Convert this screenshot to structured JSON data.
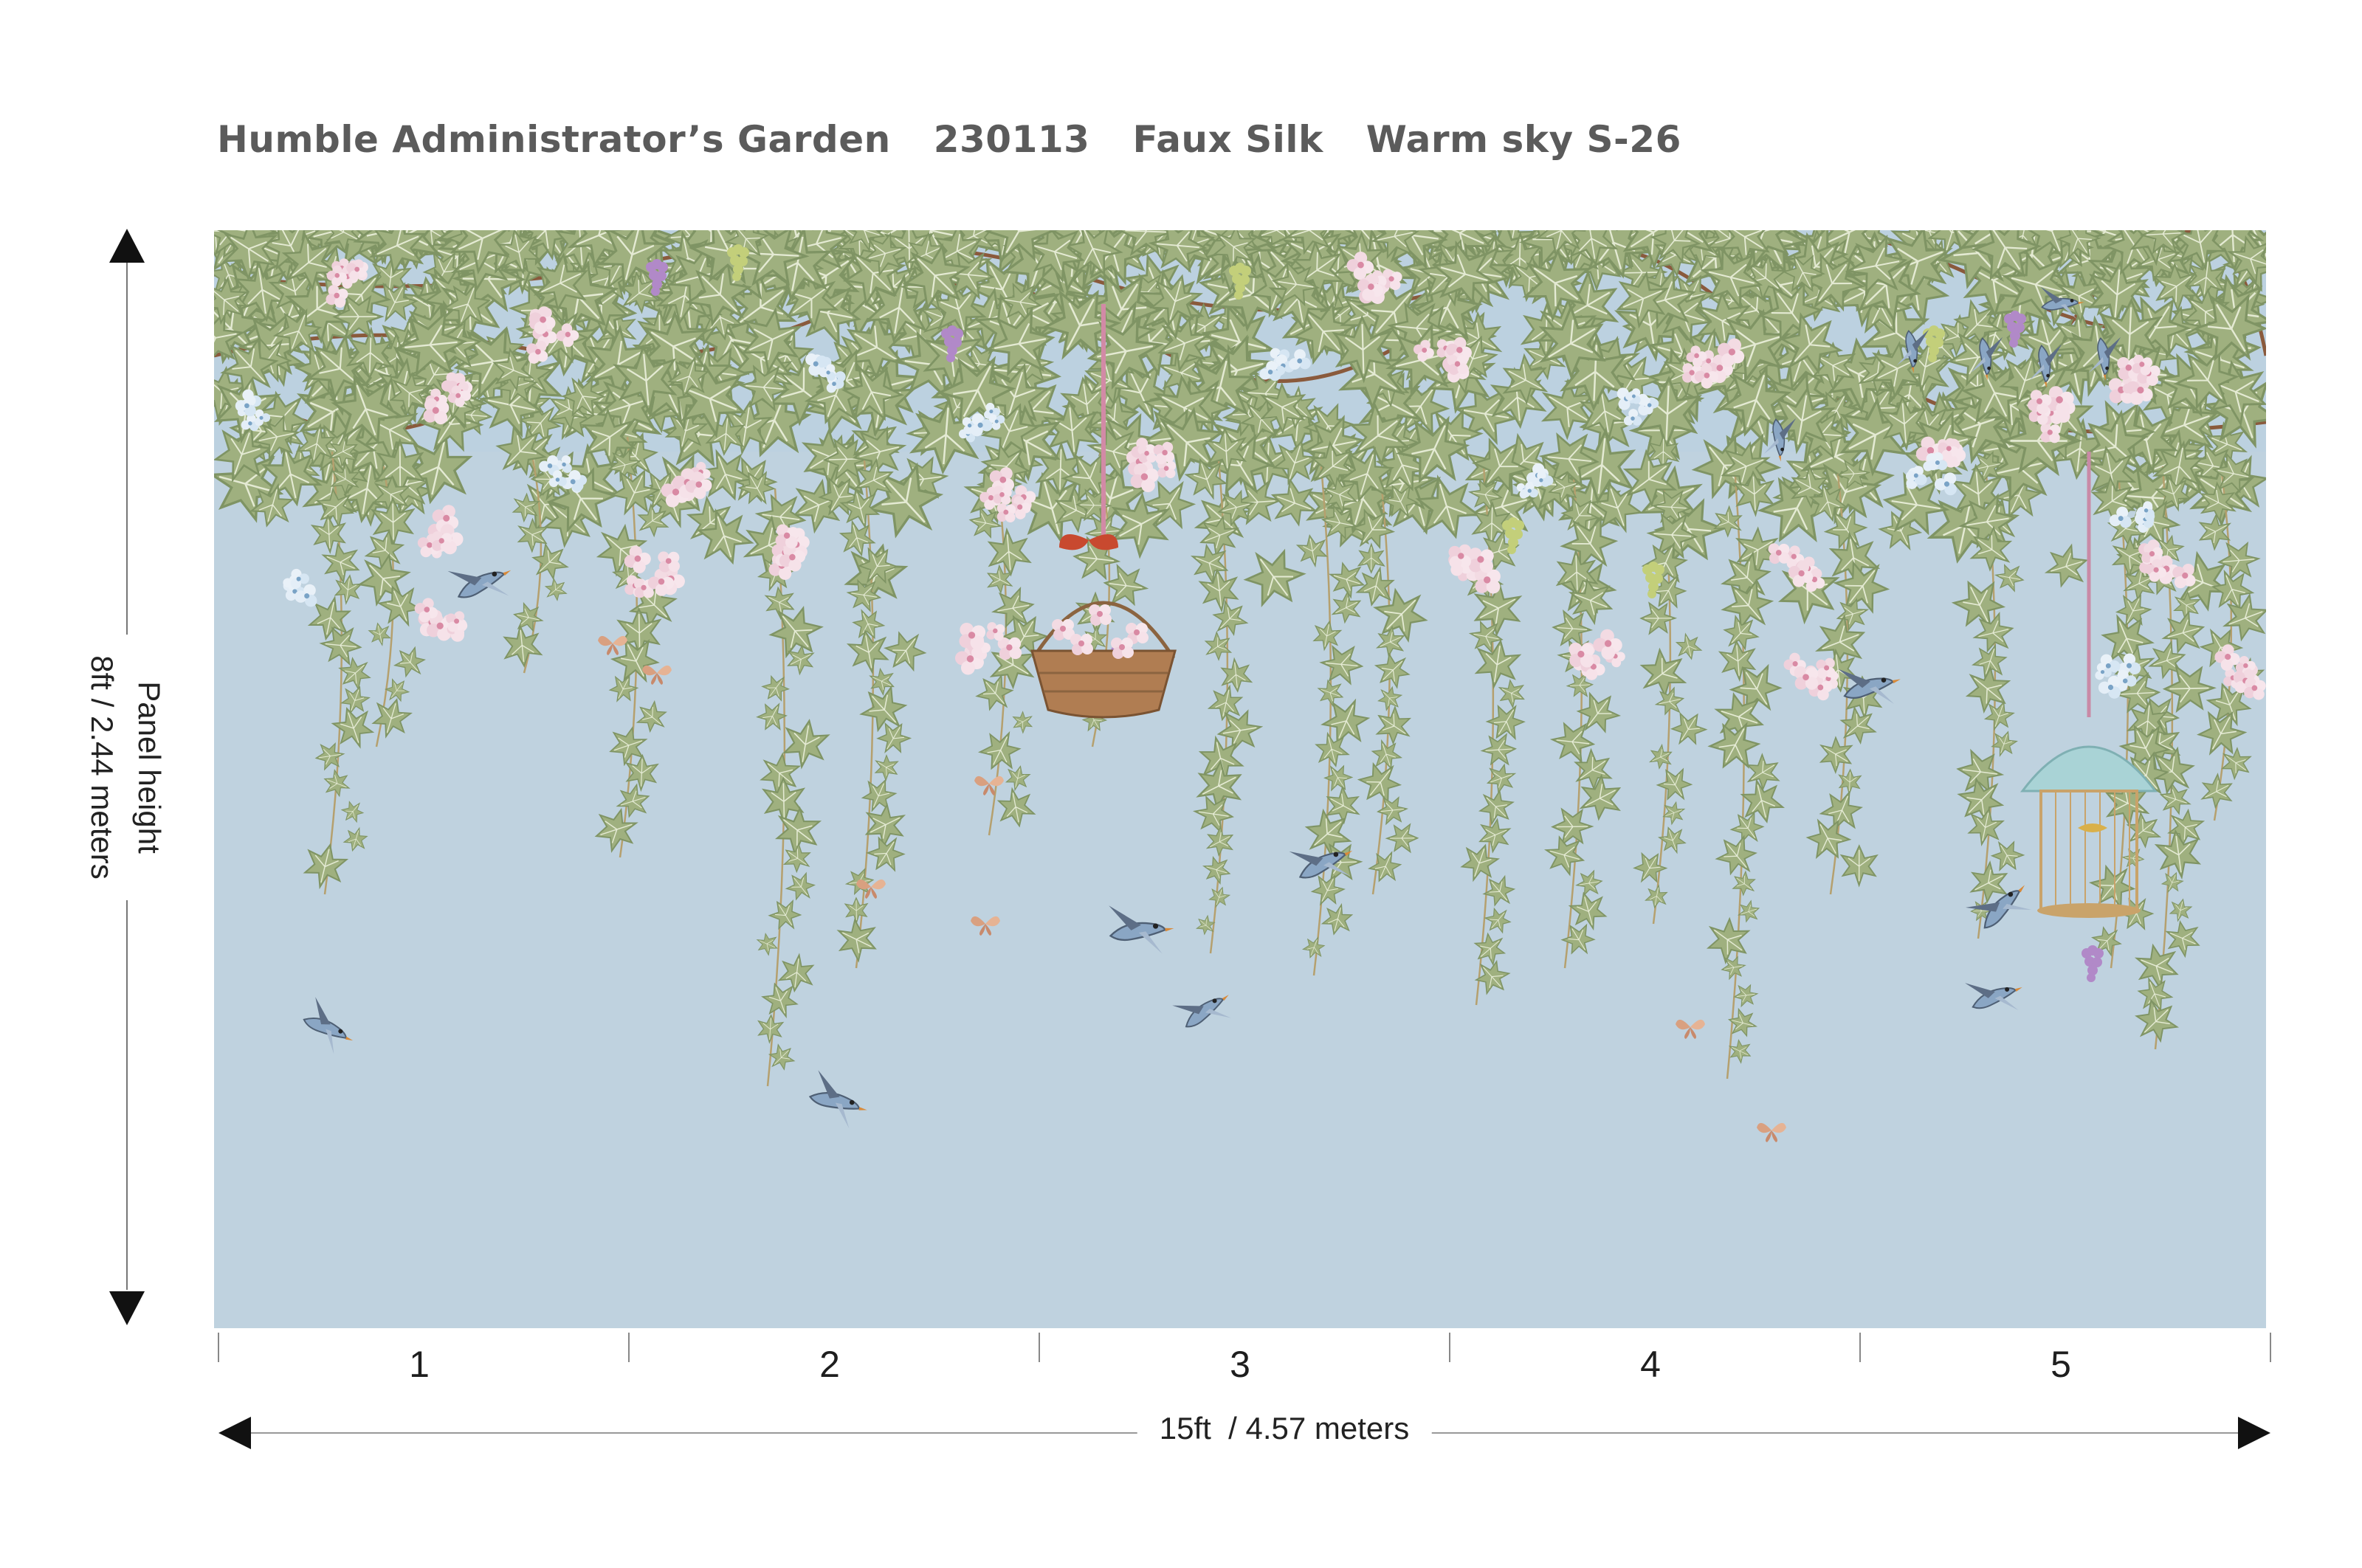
{
  "title": {
    "pattern_name": "Humble Administrator’s Garden",
    "code": "230113",
    "material": "Faux Silk",
    "colorway": "Warm sky S-26"
  },
  "dimensions": {
    "height_label_line1": "Panel height",
    "height_label_line2": "8ft / 2.44 meters",
    "width_label": "15ft  / 4.57 meters",
    "panel_numbers": [
      "1",
      "2",
      "3",
      "4",
      "5"
    ]
  },
  "colors": {
    "sky": "#bfd2df",
    "leaf": "#9fb07f",
    "leaf_dark": "#7f9464",
    "vine": "#8a5a3c",
    "text": "#5b5b5b"
  }
}
